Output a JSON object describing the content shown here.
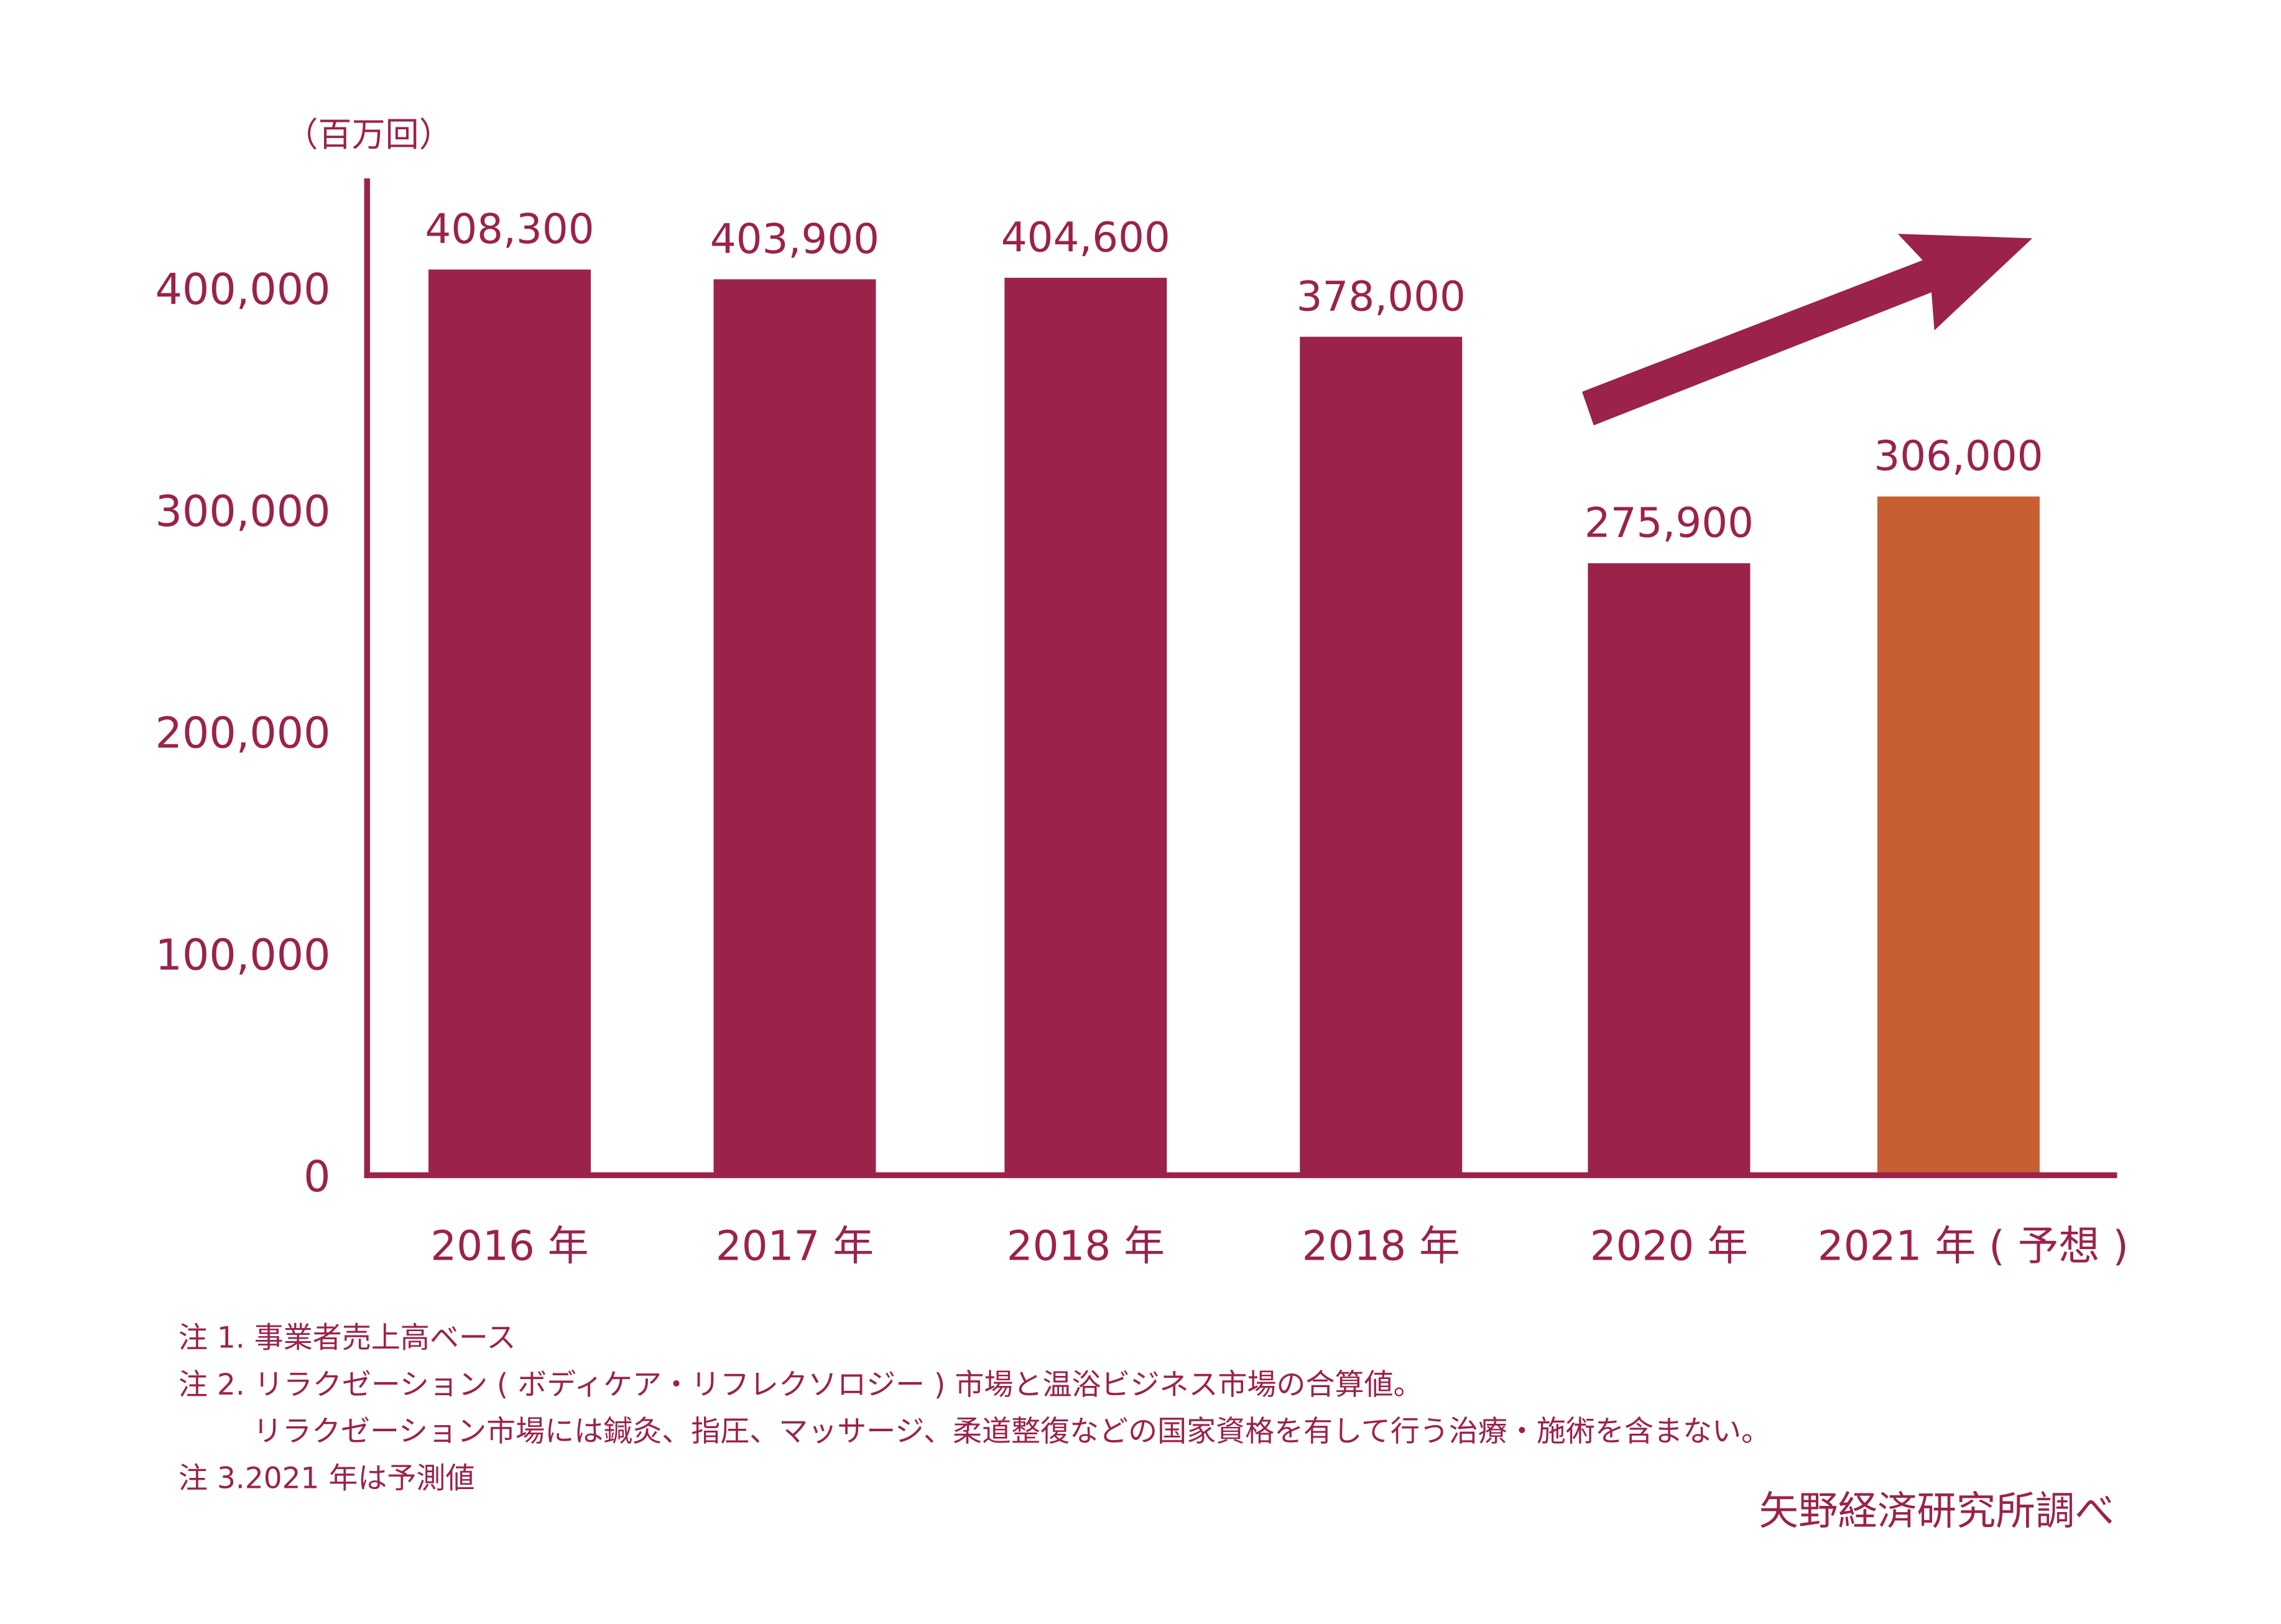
{
  "chart_data": {
    "type": "bar",
    "unit_label": "（百万回）",
    "categories": [
      "2016 年",
      "2017 年",
      "2018 年",
      "2018 年",
      "2020 年",
      "2021 年 ( 予想 )"
    ],
    "values": [
      408300,
      403900,
      404600,
      378000,
      275900,
      306000
    ],
    "value_labels": [
      "408,300",
      "403,900",
      "404,600",
      "378,000",
      "275,900",
      "306,000"
    ],
    "forecast_index": 5,
    "yticks": [
      0,
      100000,
      200000,
      300000,
      400000
    ],
    "ytick_labels": [
      "0",
      "100,000",
      "200,000",
      "300,000",
      "400,000"
    ],
    "ylim": [
      0,
      450000
    ],
    "grid": false,
    "annotation": "upward-trend-arrow",
    "colors": {
      "bar": "#9B2249",
      "forecast_bar": "#C75F33",
      "text": "#9B2249"
    }
  },
  "notes": [
    "注 1. 事業者売上高ベース",
    "注 2. リラクゼーション ( ボディケア・リフレクソロジー ) 市場と温浴ビジネス市場の合算値。",
    "リラクゼーション市場には鍼灸、指圧、マッサージ、柔道整復などの国家資格を有して行う治療・施術を含まない。",
    "注 3.2021 年は予測値"
  ],
  "source": "矢野経済研究所調べ"
}
